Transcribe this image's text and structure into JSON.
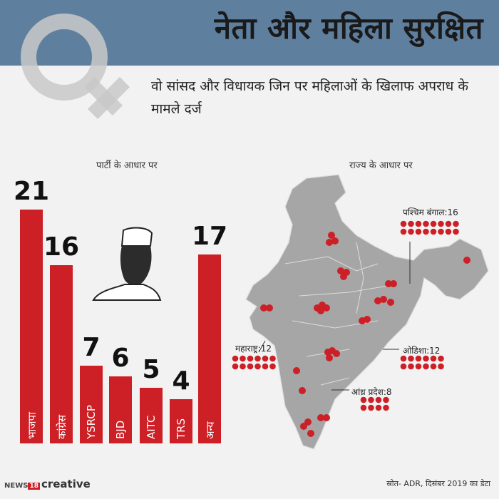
{
  "header": {
    "title": "नेता और महिला सुरक्षित",
    "subtitle": "वो सांसद और विधायक जिन पर महिलाओं के खिलाफ अपराध के मामले दर्ज"
  },
  "colors": {
    "header_bg": "#5f7f9f",
    "bar": "#cc1f26",
    "map": "#a6a6a6",
    "dot": "#cc1f26"
  },
  "icons": [
    "female-symbol-icon",
    "politician-silhouette-icon",
    "india-map"
  ],
  "chart_data": [
    {
      "type": "bar",
      "title": "पार्टी के आधार पर",
      "categories": [
        "भाजपा",
        "कांग्रेस",
        "YSRCP",
        "BJD",
        "AITC",
        "TRS",
        "अन्य"
      ],
      "values": [
        21,
        16,
        7,
        6,
        5,
        4,
        17
      ]
    },
    {
      "type": "map",
      "title": "राज्य के आधार पर",
      "callouts": [
        {
          "label": "पश्चिम बंगाल:16",
          "value": 16
        },
        {
          "label": "महाराष्ट्र:12",
          "value": 12
        },
        {
          "label": "ओडिशा:12",
          "value": 12
        },
        {
          "label": "आंध्र प्रदेश:8",
          "value": 8
        }
      ]
    }
  ],
  "footer": {
    "source": "स्रोत- ADR, दिसंबर 2019 का डेटा",
    "logo_part1": "NEWS",
    "logo_part2": "18",
    "logo_part3": "creative"
  }
}
